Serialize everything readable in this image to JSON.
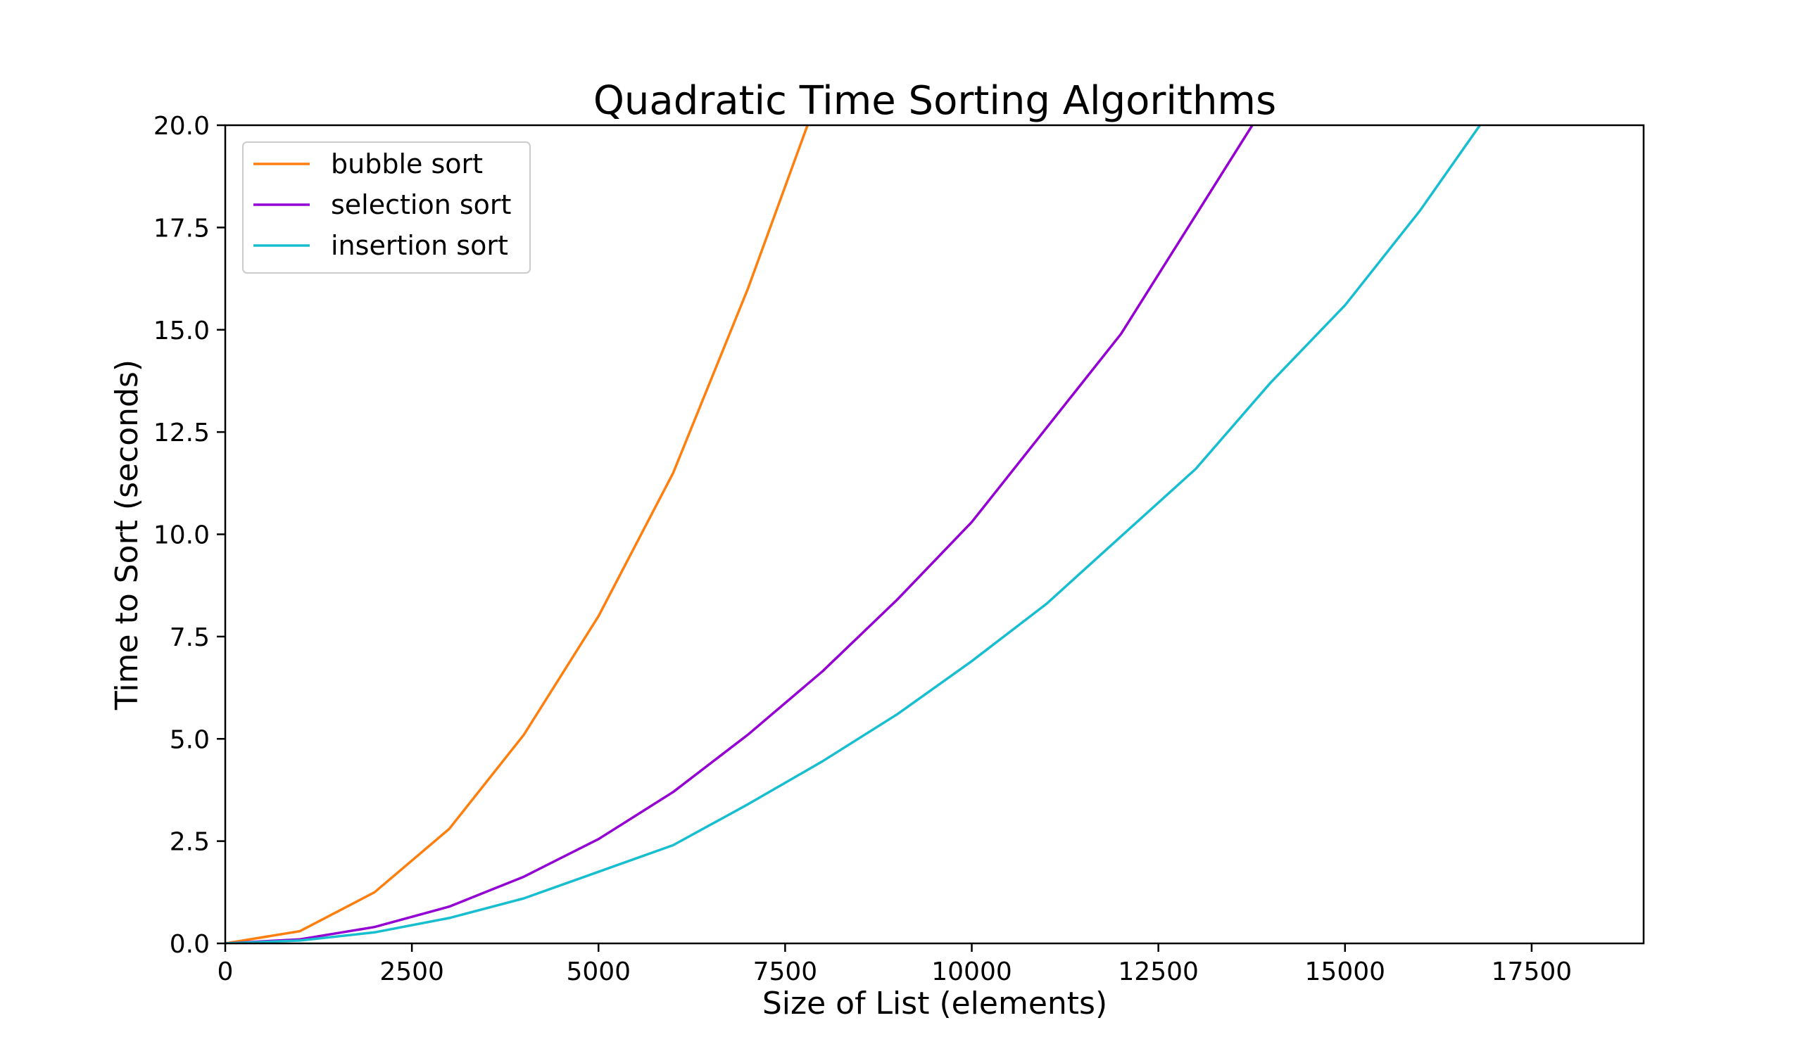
{
  "chart_data": {
    "type": "line",
    "title": "Quadratic Time Sorting Algorithms",
    "xlabel": "Size of List (elements)",
    "ylabel": "Time to Sort (seconds)",
    "xlim": [
      0,
      19000
    ],
    "ylim": [
      0,
      20
    ],
    "xticks": [
      0,
      2500,
      5000,
      7500,
      10000,
      12500,
      15000,
      17500
    ],
    "xtick_labels": [
      "0",
      "2500",
      "5000",
      "7500",
      "10000",
      "12500",
      "15000",
      "17500"
    ],
    "yticks": [
      0,
      2.5,
      5,
      7.5,
      10,
      12.5,
      15,
      17.5,
      20
    ],
    "ytick_labels": [
      "0.0",
      "2.5",
      "5.0",
      "7.5",
      "10.0",
      "12.5",
      "15.0",
      "17.5",
      "20.0"
    ],
    "grid": false,
    "legend_position": "top-left",
    "series": [
      {
        "name": "bubble sort",
        "color": "#ff7f0e",
        "x": [
          0,
          1000,
          2000,
          3000,
          4000,
          5000,
          6000,
          7000,
          8000
        ],
        "y": [
          0,
          0.3,
          1.25,
          2.8,
          5.1,
          8.0,
          11.5,
          16.0,
          21.0
        ]
      },
      {
        "name": "selection sort",
        "color": "#9400d3",
        "x": [
          0,
          1000,
          2000,
          3000,
          4000,
          5000,
          6000,
          7000,
          8000,
          9000,
          10000,
          11000,
          12000,
          13000,
          14000
        ],
        "y": [
          0,
          0.1,
          0.4,
          0.9,
          1.63,
          2.55,
          3.7,
          5.1,
          6.65,
          8.4,
          10.3,
          12.6,
          14.9,
          17.8,
          20.7
        ]
      },
      {
        "name": "insertion sort",
        "color": "#17becf",
        "x": [
          0,
          1000,
          2000,
          3000,
          4000,
          5000,
          6000,
          7000,
          8000,
          9000,
          10000,
          11000,
          12000,
          13000,
          14000,
          15000,
          16000,
          17000
        ],
        "y": [
          0,
          0.07,
          0.27,
          0.62,
          1.1,
          1.75,
          2.4,
          3.4,
          4.45,
          5.6,
          6.9,
          8.3,
          9.95,
          11.6,
          13.7,
          15.6,
          17.9,
          20.5
        ]
      }
    ]
  }
}
